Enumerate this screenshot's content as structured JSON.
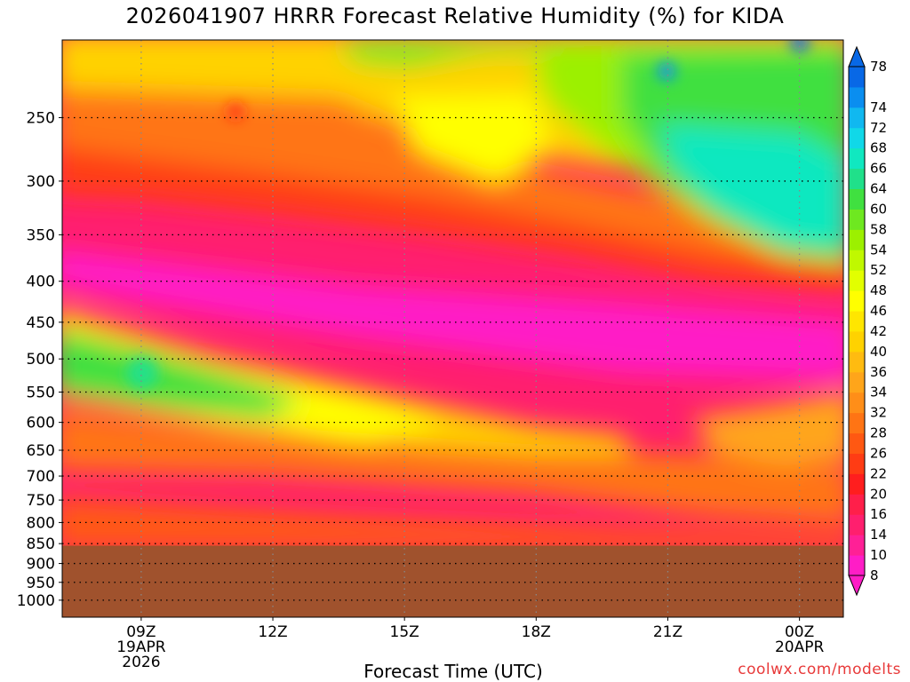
{
  "chart_data": {
    "type": "heatmap",
    "title": "2026041907 HRRR Forecast Relative Humidity (%) for KIDA",
    "xlabel": "Forecast Time (UTC)",
    "ylabel": "",
    "credit": "coolwx.com/modelts",
    "y_axis": {
      "scale": "log-pressure",
      "reversed": true,
      "ticks": [
        250,
        300,
        350,
        400,
        450,
        500,
        550,
        600,
        650,
        700,
        750,
        800,
        850,
        900,
        950,
        1000
      ],
      "range": [
        200,
        1050
      ]
    },
    "x_axis": {
      "range_hours_utc": [
        7.2,
        25.0
      ],
      "ticks": [
        {
          "hour": 9,
          "label": "09Z",
          "date": "19APR",
          "year": "2026"
        },
        {
          "hour": 12,
          "label": "12Z",
          "date": "",
          "year": ""
        },
        {
          "hour": 15,
          "label": "15Z",
          "date": "",
          "year": ""
        },
        {
          "hour": 18,
          "label": "18Z",
          "date": "",
          "year": ""
        },
        {
          "hour": 21,
          "label": "21Z",
          "date": "",
          "year": ""
        },
        {
          "hour": 24,
          "label": "00Z",
          "date": "20APR",
          "year": ""
        }
      ]
    },
    "grid": true,
    "below_ground_pressure": 855,
    "below_ground_color": "#a0522d",
    "colorbar": {
      "levels": [
        8,
        10,
        14,
        16,
        20,
        22,
        26,
        28,
        32,
        34,
        36,
        40,
        42,
        46,
        48,
        52,
        54,
        58,
        60,
        64,
        66,
        68,
        72,
        74,
        78
      ],
      "colors": [
        "#ff1dc6",
        "#ff2096",
        "#ff1f6e",
        "#ff1f4a",
        "#ff1e1e",
        "#ff3c14",
        "#ff5812",
        "#ff7414",
        "#ff8e18",
        "#ffa51a",
        "#ffbb10",
        "#ffd200",
        "#ffe600",
        "#ffff00",
        "#e2ff00",
        "#c0f800",
        "#9cf000",
        "#6ee820",
        "#40e040",
        "#20e08a",
        "#10e8c0",
        "#10d8e8",
        "#10b8f0",
        "#0a8ef0",
        "#0868e6"
      ]
    },
    "features": [
      {
        "description": "moist mid-level band",
        "rh_peak": 60,
        "pressure_start": 500,
        "hour_start": 7.2,
        "pressure_end": 600,
        "hour_end": 17
      },
      {
        "description": "upper-level moisture",
        "rh_peak": 72,
        "pressure_range": [
          200,
          380
        ],
        "hour_range": [
          19,
          25
        ]
      },
      {
        "description": "dry layer",
        "rh_min": 10,
        "pressure_range": [
          350,
          520
        ],
        "hour_range": [
          7.2,
          25
        ]
      }
    ]
  }
}
